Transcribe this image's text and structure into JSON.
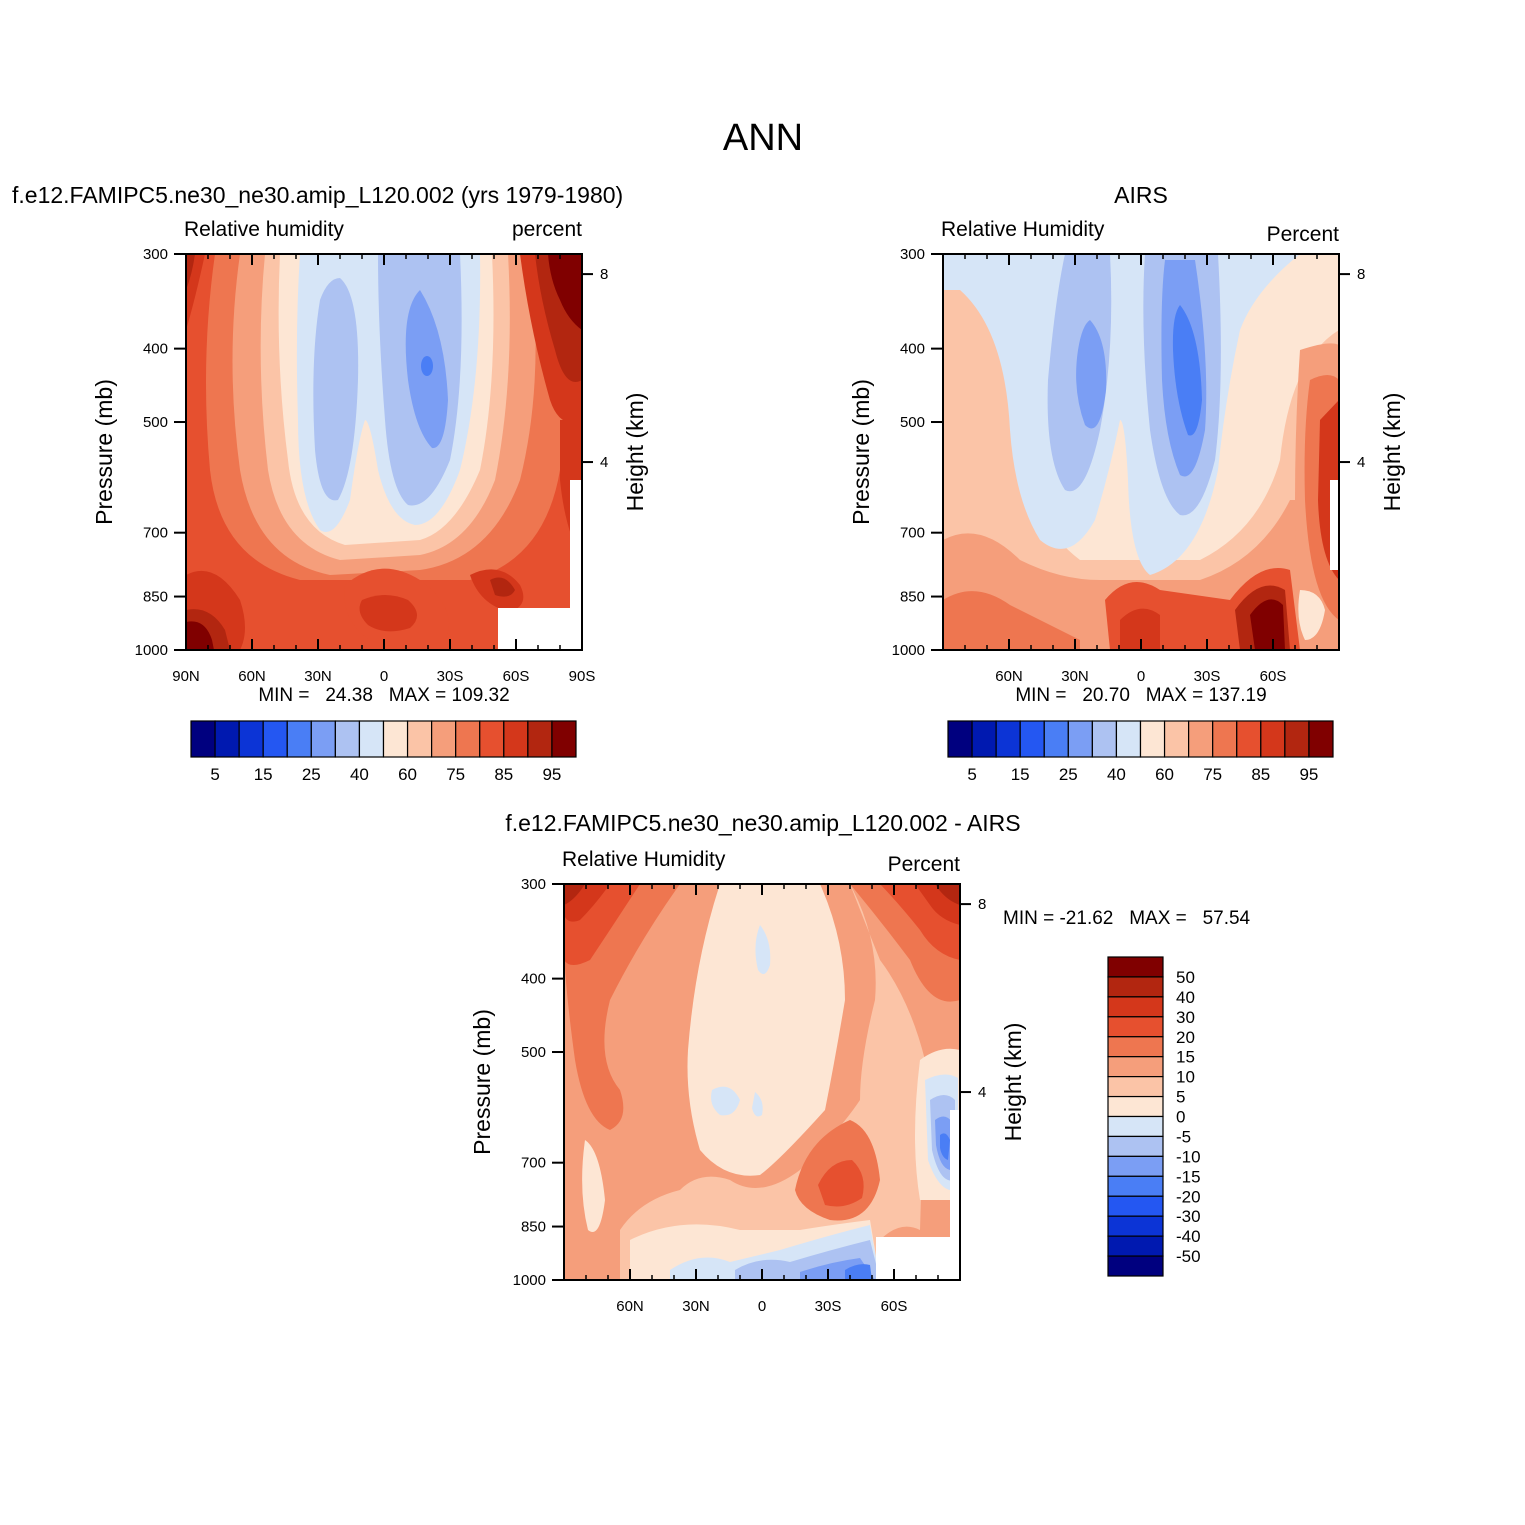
{
  "main_title": "ANN",
  "palette": [
    "#00007f",
    "#0019b0",
    "#0c34d6",
    "#2457f2",
    "#4a7ef5",
    "#7b9ef4",
    "#adc2f2",
    "#d6e5f7",
    "#fde6d4",
    "#fbc4a7",
    "#f59e7b",
    "#ee7650",
    "#e6502f",
    "#d4371b",
    "#b22610",
    "#800000"
  ],
  "chart_data": [
    {
      "id": "model",
      "type": "contour",
      "title_left": "f.e12.FAMIPC5.ne30_ne30.amip_L120.002 (yrs 1979-1980)",
      "subtitle_left": "Relative humidity",
      "subtitle_right": "percent",
      "xlabel": "",
      "ylabel": "Pressure (mb)",
      "y2label": "Height (km)",
      "x_ticks": [
        "90N",
        "60N",
        "30N",
        "0",
        "30S",
        "60S",
        "90S"
      ],
      "x_range": [
        90,
        -90
      ],
      "y_ticks": [
        "300",
        "400",
        "500",
        "700",
        "850",
        "1000"
      ],
      "y_range_mb": [
        300,
        1000
      ],
      "y2_ticks": [
        "8",
        "4"
      ],
      "stats_label": "MIN =   24.38   MAX = 109.32",
      "min": 24.38,
      "max": 109.32,
      "colorbar_labels": [
        "5",
        "15",
        "25",
        "40",
        "60",
        "75",
        "85",
        "95"
      ],
      "colorbar_orientation": "horizontal"
    },
    {
      "id": "obs",
      "type": "contour",
      "title_center": "AIRS",
      "subtitle_left": "Relative Humidity",
      "subtitle_right": "Percent",
      "ylabel": "Pressure (mb)",
      "y2label": "Height (km)",
      "x_ticks": [
        "60N",
        "30N",
        "0",
        "30S",
        "60S"
      ],
      "x_range": [
        90,
        -90
      ],
      "y_ticks": [
        "300",
        "400",
        "500",
        "700",
        "850",
        "1000"
      ],
      "y_range_mb": [
        300,
        1000
      ],
      "y2_ticks": [
        "8",
        "4"
      ],
      "stats_label": "MIN =   20.70   MAX = 137.19",
      "min": 20.7,
      "max": 137.19,
      "colorbar_labels": [
        "5",
        "15",
        "25",
        "40",
        "60",
        "75",
        "85",
        "95"
      ],
      "colorbar_orientation": "horizontal"
    },
    {
      "id": "diff",
      "type": "contour",
      "title_center": "f.e12.FAMIPC5.ne30_ne30.amip_L120.002 - AIRS",
      "subtitle_left": "Relative Humidity",
      "subtitle_right": "Percent",
      "ylabel": "Pressure (mb)",
      "y2label": "Height (km)",
      "x_ticks": [
        "60N",
        "30N",
        "0",
        "30S",
        "60S"
      ],
      "x_range": [
        90,
        -90
      ],
      "y_ticks": [
        "300",
        "400",
        "500",
        "700",
        "850",
        "1000"
      ],
      "y_range_mb": [
        300,
        1000
      ],
      "y2_ticks": [
        "8",
        "4"
      ],
      "stats_label": "MIN = -21.62   MAX =   57.54",
      "min": -21.62,
      "max": 57.54,
      "colorbar_labels": [
        "50",
        "40",
        "30",
        "20",
        "15",
        "10",
        "5",
        "0",
        "-5",
        "-10",
        "-15",
        "-20",
        "-30",
        "-40",
        "-50"
      ],
      "colorbar_orientation": "vertical"
    }
  ]
}
